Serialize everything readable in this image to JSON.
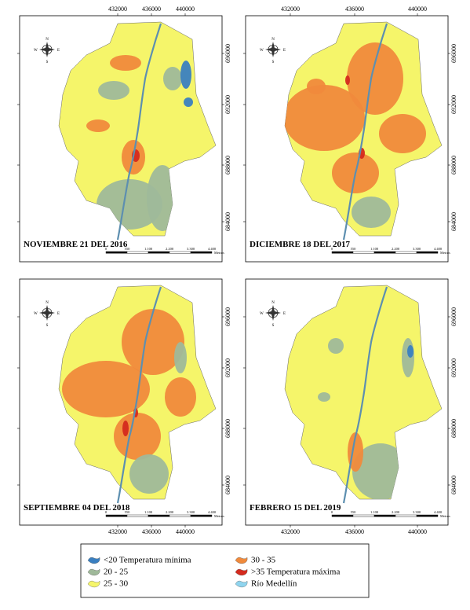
{
  "panels": [
    {
      "title": "NOVIEMBRE 21 DEL 2016",
      "scale_labels": [
        "0",
        "550",
        "1.100",
        "2.200",
        "3.300",
        "4.400"
      ],
      "unit": "Metros"
    },
    {
      "title": "DICIEMBRE 18 DEL 2017",
      "scale_labels": [
        "0",
        "550",
        "1.100",
        "2.200",
        "3.300",
        "4.400"
      ],
      "unit": "Metros"
    },
    {
      "title": "SEPTIEMBRE 04 DEL 2018",
      "scale_labels": [
        "0",
        "550",
        "1.100",
        "2.200",
        "3.300",
        "4.400"
      ],
      "unit": "Metros"
    },
    {
      "title": "FEBRERO 15 DEL 2019",
      "scale_labels": [
        "0",
        "550",
        "1.100",
        "2.200",
        "3.300",
        "4.400"
      ],
      "unit": "Metros"
    }
  ],
  "axes": {
    "x_ticks": [
      "432000",
      "436000",
      "440000"
    ],
    "y_ticks": [
      "696000",
      "692000",
      "688000",
      "684000"
    ]
  },
  "compass": {
    "n": "N",
    "s": "S",
    "e": "E",
    "w": "W"
  },
  "legend": [
    {
      "label": "<20 Temperatura mínima",
      "color": "#3a7fc0"
    },
    {
      "label": "20 - 25",
      "color": "#9fb99a"
    },
    {
      "label": "25 - 30",
      "color": "#f5f56a"
    },
    {
      "label": "30 - 35",
      "color": "#f08a3c"
    },
    {
      "label": ">35 Temperatura máxima",
      "color": "#d42a1e"
    },
    {
      "label": "Río Medellín",
      "color": "#8fd4ee"
    }
  ]
}
